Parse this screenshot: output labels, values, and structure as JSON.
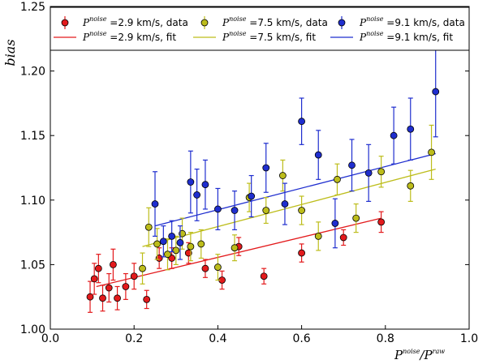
{
  "chart_data": {
    "type": "scatter",
    "title": "",
    "xlabel": {
      "main": "P",
      "num_sup": "noise",
      "slash": "/P",
      "den_sup": "raw"
    },
    "ylabel": "bias",
    "xlim": [
      0.0,
      1.0
    ],
    "ylim": [
      1.0,
      1.25
    ],
    "x_ticks": [
      "0.0",
      "0.2",
      "0.4",
      "0.6",
      "0.8",
      "1.0"
    ],
    "y_ticks": [
      "1.00",
      "1.05",
      "1.10",
      "1.15",
      "1.20",
      "1.25"
    ],
    "legend_position": "top",
    "series": [
      {
        "name": "2.9 km/s",
        "color": "#e31a1c",
        "legend_data": {
          "prefix": "P",
          "sup": "noise",
          "rest": " =2.9 km/s, data"
        },
        "legend_fit": {
          "prefix": "P",
          "sup": "noise",
          "rest": " =2.9 km/s, fit"
        },
        "points": [
          {
            "x": 0.095,
            "y": 1.025,
            "err": 0.012
          },
          {
            "x": 0.105,
            "y": 1.039,
            "err": 0.012
          },
          {
            "x": 0.115,
            "y": 1.047,
            "err": 0.011
          },
          {
            "x": 0.125,
            "y": 1.024,
            "err": 0.01
          },
          {
            "x": 0.14,
            "y": 1.032,
            "err": 0.011
          },
          {
            "x": 0.15,
            "y": 1.05,
            "err": 0.012
          },
          {
            "x": 0.16,
            "y": 1.024,
            "err": 0.009
          },
          {
            "x": 0.18,
            "y": 1.033,
            "err": 0.01
          },
          {
            "x": 0.2,
            "y": 1.041,
            "err": 0.01
          },
          {
            "x": 0.23,
            "y": 1.023,
            "err": 0.007
          },
          {
            "x": 0.26,
            "y": 1.055,
            "err": 0.008
          },
          {
            "x": 0.29,
            "y": 1.055,
            "err": 0.008
          },
          {
            "x": 0.33,
            "y": 1.059,
            "err": 0.008
          },
          {
            "x": 0.37,
            "y": 1.047,
            "err": 0.007
          },
          {
            "x": 0.41,
            "y": 1.038,
            "err": 0.007
          },
          {
            "x": 0.45,
            "y": 1.064,
            "err": 0.007
          },
          {
            "x": 0.51,
            "y": 1.041,
            "err": 0.006
          },
          {
            "x": 0.6,
            "y": 1.059,
            "err": 0.007
          },
          {
            "x": 0.7,
            "y": 1.071,
            "err": 0.006
          },
          {
            "x": 0.79,
            "y": 1.083,
            "err": 0.008
          }
        ],
        "fit": {
          "x": [
            0.11,
            0.79
          ],
          "y": [
            1.033,
            1.086
          ]
        }
      },
      {
        "name": "7.5 km/s",
        "color": "#bdbd1b",
        "legend_data": {
          "prefix": "P",
          "sup": "noise",
          "rest": " =7.5 km/s, data"
        },
        "legend_fit": {
          "prefix": "P",
          "sup": "noise",
          "rest": " =7.5 km/s, fit"
        },
        "points": [
          {
            "x": 0.22,
            "y": 1.047,
            "err": 0.012
          },
          {
            "x": 0.235,
            "y": 1.079,
            "err": 0.015
          },
          {
            "x": 0.255,
            "y": 1.066,
            "err": 0.012
          },
          {
            "x": 0.28,
            "y": 1.058,
            "err": 0.012
          },
          {
            "x": 0.3,
            "y": 1.061,
            "err": 0.011
          },
          {
            "x": 0.315,
            "y": 1.074,
            "err": 0.012
          },
          {
            "x": 0.335,
            "y": 1.064,
            "err": 0.011
          },
          {
            "x": 0.36,
            "y": 1.066,
            "err": 0.011
          },
          {
            "x": 0.4,
            "y": 1.048,
            "err": 0.01
          },
          {
            "x": 0.44,
            "y": 1.063,
            "err": 0.01
          },
          {
            "x": 0.475,
            "y": 1.102,
            "err": 0.011
          },
          {
            "x": 0.515,
            "y": 1.092,
            "err": 0.01
          },
          {
            "x": 0.555,
            "y": 1.119,
            "err": 0.012
          },
          {
            "x": 0.6,
            "y": 1.092,
            "err": 0.011
          },
          {
            "x": 0.64,
            "y": 1.072,
            "err": 0.011
          },
          {
            "x": 0.685,
            "y": 1.116,
            "err": 0.012
          },
          {
            "x": 0.73,
            "y": 1.086,
            "err": 0.011
          },
          {
            "x": 0.79,
            "y": 1.122,
            "err": 0.012
          },
          {
            "x": 0.86,
            "y": 1.111,
            "err": 0.012
          },
          {
            "x": 0.91,
            "y": 1.137,
            "err": 0.021
          }
        ],
        "fit": {
          "x": [
            0.22,
            0.92
          ],
          "y": [
            1.064,
            1.124
          ]
        }
      },
      {
        "name": "9.1 km/s",
        "color": "#1f2ecf",
        "legend_data": {
          "prefix": "P",
          "sup": "noise",
          "rest": " =9.1 km/s, data"
        },
        "legend_fit": {
          "prefix": "P",
          "sup": "noise",
          "rest": " =9.1 km/s, fit"
        },
        "points": [
          {
            "x": 0.25,
            "y": 1.097,
            "err": 0.025
          },
          {
            "x": 0.27,
            "y": 1.068,
            "err": 0.012
          },
          {
            "x": 0.29,
            "y": 1.072,
            "err": 0.012
          },
          {
            "x": 0.31,
            "y": 1.067,
            "err": 0.013
          },
          {
            "x": 0.335,
            "y": 1.114,
            "err": 0.024
          },
          {
            "x": 0.35,
            "y": 1.104,
            "err": 0.02
          },
          {
            "x": 0.37,
            "y": 1.112,
            "err": 0.019
          },
          {
            "x": 0.4,
            "y": 1.093,
            "err": 0.016
          },
          {
            "x": 0.44,
            "y": 1.092,
            "err": 0.015
          },
          {
            "x": 0.48,
            "y": 1.103,
            "err": 0.016
          },
          {
            "x": 0.515,
            "y": 1.125,
            "err": 0.019
          },
          {
            "x": 0.56,
            "y": 1.097,
            "err": 0.016
          },
          {
            "x": 0.6,
            "y": 1.161,
            "err": 0.018
          },
          {
            "x": 0.64,
            "y": 1.135,
            "err": 0.019
          },
          {
            "x": 0.68,
            "y": 1.082,
            "err": 0.019
          },
          {
            "x": 0.72,
            "y": 1.127,
            "err": 0.02
          },
          {
            "x": 0.76,
            "y": 1.121,
            "err": 0.022
          },
          {
            "x": 0.82,
            "y": 1.15,
            "err": 0.022
          },
          {
            "x": 0.86,
            "y": 1.155,
            "err": 0.024
          },
          {
            "x": 0.92,
            "y": 1.184,
            "err": 0.035
          }
        ],
        "fit": {
          "x": [
            0.25,
            0.92
          ],
          "y": [
            1.08,
            1.136
          ]
        }
      }
    ]
  }
}
